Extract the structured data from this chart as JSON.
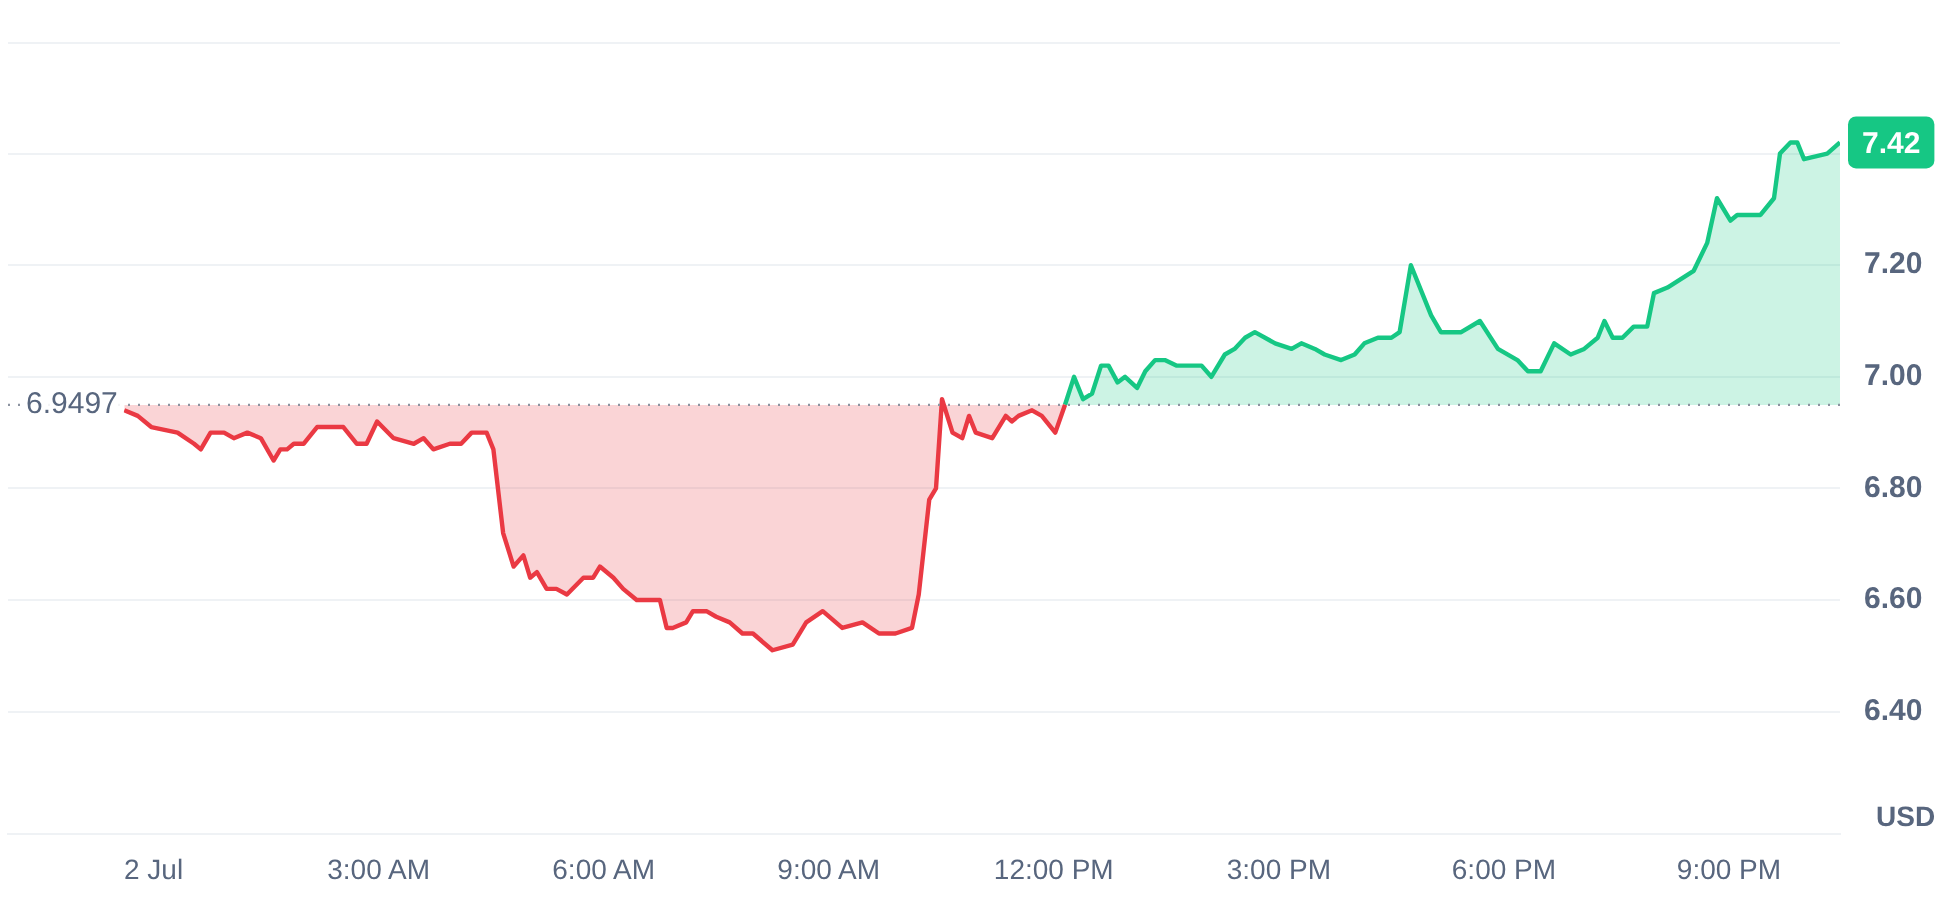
{
  "chart_data": {
    "type": "area",
    "ylabel": "USD",
    "xlim": [
      -1.94,
      22.48
    ],
    "xticks": [
      {
        "value": 0,
        "label": "2 Jul"
      },
      {
        "value": 3,
        "label": "3:00 AM"
      },
      {
        "value": 6,
        "label": "6:00 AM"
      },
      {
        "value": 9,
        "label": "9:00 AM"
      },
      {
        "value": 12,
        "label": "12:00 PM"
      },
      {
        "value": 15,
        "label": "3:00 PM"
      },
      {
        "value": 18,
        "label": "6:00 PM"
      },
      {
        "value": 21,
        "label": "9:00 PM"
      }
    ],
    "ylim": [
      6.18,
      7.6
    ],
    "yticks": [
      {
        "value": 6.4,
        "label": "6.40"
      },
      {
        "value": 6.6,
        "label": "6.60"
      },
      {
        "value": 6.8,
        "label": "6.80"
      },
      {
        "value": 7.0,
        "label": "7.00"
      },
      {
        "value": 7.2,
        "label": "7.20"
      },
      {
        "value": 7.4,
        "label": null
      }
    ],
    "grid": "y",
    "legend": false,
    "marker": "none",
    "line_style": "solid",
    "ref_lines": [
      {
        "axis": "y",
        "value": 6.9497,
        "label": "6.9497",
        "color": "#8c93a0",
        "line_style": "dotted"
      }
    ],
    "annotations": [
      {
        "text": "7.42",
        "x": 22.48,
        "y": 7.42
      }
    ],
    "series": [
      {
        "color": "#ea3943",
        "x": [
          -0.39,
          -0.21,
          -0.03,
          0.32,
          0.54,
          0.63,
          0.76,
          0.94,
          1.07,
          1.25,
          1.43,
          1.6,
          1.69,
          1.78,
          1.87,
          2.0,
          2.18,
          2.31,
          2.53,
          2.71,
          2.84,
          2.98,
          3.2,
          3.47,
          3.6,
          3.73,
          3.95,
          4.1,
          4.24,
          4.44,
          4.53,
          4.66,
          4.8,
          4.93,
          5.02,
          5.11,
          5.24,
          5.37,
          5.51,
          5.73,
          5.86,
          5.95,
          6.13,
          6.26,
          6.44,
          6.66,
          6.75,
          6.84,
          6.92,
          7.1,
          7.19,
          7.37,
          7.5,
          7.68,
          7.85,
          7.99,
          8.25,
          8.52,
          8.7,
          8.92,
          9.18,
          9.45,
          9.67,
          9.89,
          10.11,
          10.2,
          10.34,
          10.43,
          10.51,
          10.65,
          10.78,
          10.87,
          10.96,
          11.18,
          11.36,
          11.44,
          11.53,
          11.71,
          11.84,
          12.02,
          12.15
        ],
        "values": [
          6.94,
          6.93,
          6.91,
          6.9,
          6.88,
          6.87,
          6.9,
          6.9,
          6.89,
          6.9,
          6.89,
          6.85,
          6.87,
          6.87,
          6.88,
          6.88,
          6.91,
          6.91,
          6.91,
          6.88,
          6.88,
          6.92,
          6.89,
          6.88,
          6.89,
          6.87,
          6.88,
          6.88,
          6.9,
          6.9,
          6.87,
          6.72,
          6.66,
          6.68,
          6.64,
          6.65,
          6.62,
          6.62,
          6.61,
          6.64,
          6.64,
          6.66,
          6.64,
          6.62,
          6.6,
          6.6,
          6.6,
          6.55,
          6.55,
          6.56,
          6.58,
          6.58,
          6.57,
          6.56,
          6.54,
          6.54,
          6.51,
          6.52,
          6.56,
          6.58,
          6.55,
          6.56,
          6.54,
          6.54,
          6.55,
          6.61,
          6.78,
          6.8,
          6.96,
          6.9,
          6.89,
          6.93,
          6.9,
          6.89,
          6.93,
          6.92,
          6.93,
          6.94,
          6.93,
          6.9,
          6.95
        ]
      },
      {
        "color": "#16c784",
        "x": [
          12.15,
          12.27,
          12.39,
          12.51,
          12.63,
          12.73,
          12.85,
          12.95,
          13.11,
          13.22,
          13.35,
          13.48,
          13.64,
          13.8,
          13.97,
          14.1,
          14.28,
          14.41,
          14.55,
          14.68,
          14.95,
          15.17,
          15.3,
          15.48,
          15.61,
          15.83,
          16.01,
          16.14,
          16.32,
          16.5,
          16.61,
          16.76,
          17.03,
          17.16,
          17.43,
          17.68,
          17.92,
          18.18,
          18.32,
          18.49,
          18.67,
          18.89,
          19.07,
          19.25,
          19.34,
          19.45,
          19.58,
          19.73,
          19.91,
          20.0,
          20.18,
          20.53,
          20.71,
          20.84,
          21.02,
          21.11,
          21.42,
          21.6,
          21.68,
          21.82,
          21.91,
          22.0,
          22.31,
          22.48
        ],
        "values": [
          6.95,
          7.0,
          6.96,
          6.97,
          7.02,
          7.02,
          6.99,
          7.0,
          6.98,
          7.01,
          7.03,
          7.03,
          7.02,
          7.02,
          7.02,
          7.0,
          7.04,
          7.05,
          7.07,
          7.08,
          7.06,
          7.05,
          7.06,
          7.05,
          7.04,
          7.03,
          7.04,
          7.06,
          7.07,
          7.07,
          7.08,
          7.2,
          7.11,
          7.08,
          7.08,
          7.1,
          7.05,
          7.03,
          7.01,
          7.01,
          7.06,
          7.04,
          7.05,
          7.07,
          7.1,
          7.07,
          7.07,
          7.09,
          7.09,
          7.15,
          7.16,
          7.19,
          7.24,
          7.32,
          7.28,
          7.29,
          7.29,
          7.32,
          7.4,
          7.42,
          7.42,
          7.39,
          7.4,
          7.42
        ]
      }
    ]
  }
}
